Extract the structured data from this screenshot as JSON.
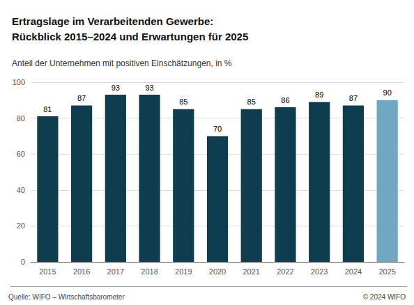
{
  "chart_data": {
    "type": "bar",
    "title": "Ertragslage im Verarbeitenden Gewerbe:\nRückblick 2015–2024 und Erwartungen für 2025",
    "subtitle": "Anteil der Unternehmen mit positiven Einschätzungen, in %",
    "annotations": [
      "Quelle: WIFO – Wirtschaftsbarometer",
      "© 2024 WIFO"
    ],
    "categories": [
      "2015",
      "2016",
      "2017",
      "2018",
      "2019",
      "2020",
      "2021",
      "2022",
      "2023",
      "2024",
      "2025"
    ],
    "values": [
      81,
      87,
      93,
      93,
      85,
      70,
      85,
      86,
      89,
      87,
      90
    ],
    "colors": [
      "#0d3d4f",
      "#0d3d4f",
      "#0d3d4f",
      "#0d3d4f",
      "#0d3d4f",
      "#0d3d4f",
      "#0d3d4f",
      "#0d3d4f",
      "#0d3d4f",
      "#0d3d4f",
      "#6fa8c0"
    ],
    "ylim": [
      0,
      100
    ],
    "yticks": [
      0,
      20,
      40,
      60,
      80,
      100
    ],
    "grid": true,
    "data_labels": true
  }
}
